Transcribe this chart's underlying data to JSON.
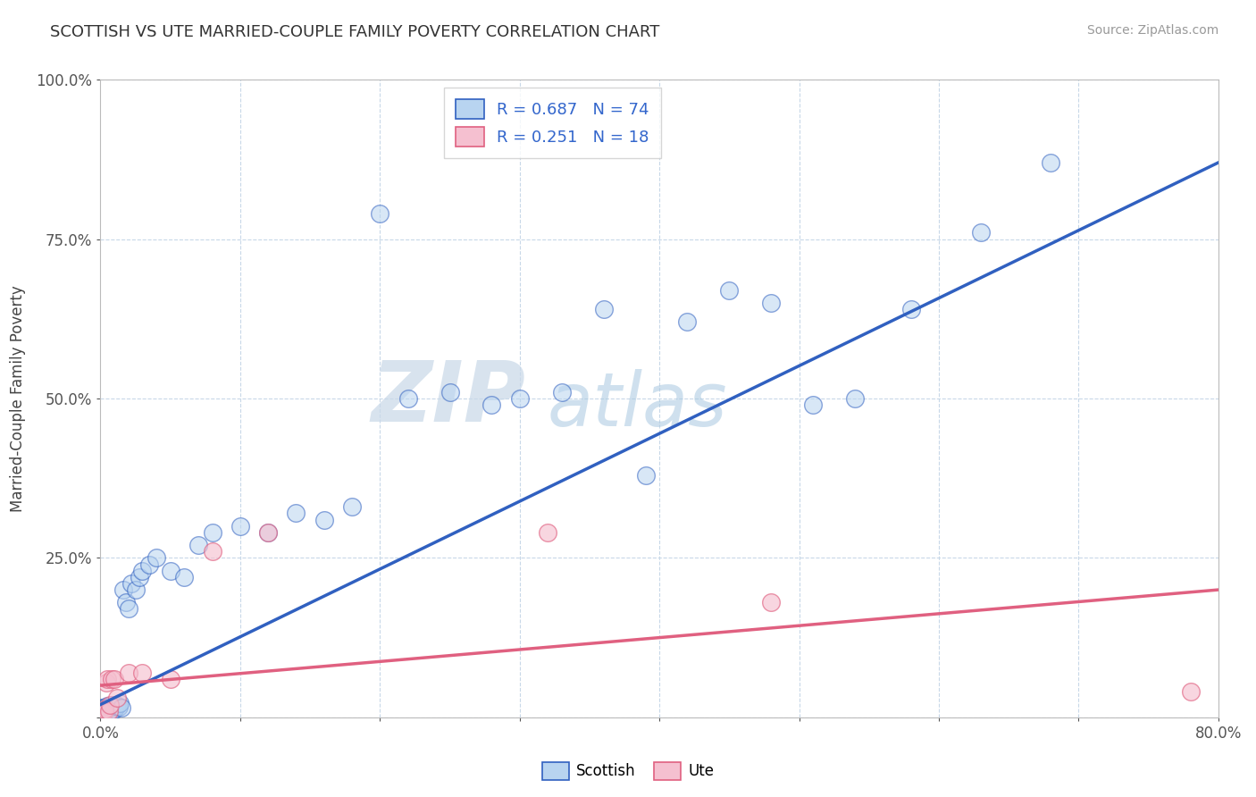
{
  "title": "SCOTTISH VS UTE MARRIED-COUPLE FAMILY POVERTY CORRELATION CHART",
  "source_text": "Source: ZipAtlas.com",
  "ylabel": "Married-Couple Family Poverty",
  "xlim": [
    0.0,
    0.8
  ],
  "ylim": [
    0.0,
    1.0
  ],
  "xticks": [
    0.0,
    0.1,
    0.2,
    0.3,
    0.4,
    0.5,
    0.6,
    0.7,
    0.8
  ],
  "xticklabels": [
    "0.0%",
    "",
    "",
    "",
    "",
    "",
    "",
    "",
    "80.0%"
  ],
  "yticks": [
    0.0,
    0.25,
    0.5,
    0.75,
    1.0
  ],
  "yticklabels": [
    "",
    "25.0%",
    "50.0%",
    "75.0%",
    "100.0%"
  ],
  "scottish_color": "#b8d4f0",
  "ute_color": "#f5c0d0",
  "scottish_line_color": "#3060c0",
  "ute_line_color": "#e06080",
  "scottish_R": 0.687,
  "scottish_N": 74,
  "ute_R": 0.251,
  "ute_N": 18,
  "watermark_zip": "ZIP",
  "watermark_atlas": "atlas",
  "background_color": "#ffffff",
  "grid_color": "#c8d8e8",
  "scottish_x": [
    0.001,
    0.001,
    0.001,
    0.001,
    0.001,
    0.002,
    0.002,
    0.002,
    0.002,
    0.002,
    0.003,
    0.003,
    0.003,
    0.003,
    0.004,
    0.004,
    0.004,
    0.004,
    0.005,
    0.005,
    0.005,
    0.005,
    0.006,
    0.006,
    0.006,
    0.007,
    0.007,
    0.007,
    0.008,
    0.008,
    0.008,
    0.009,
    0.009,
    0.01,
    0.01,
    0.011,
    0.012,
    0.013,
    0.014,
    0.015,
    0.016,
    0.018,
    0.02,
    0.022,
    0.025,
    0.028,
    0.03,
    0.035,
    0.04,
    0.05,
    0.06,
    0.07,
    0.08,
    0.1,
    0.12,
    0.14,
    0.16,
    0.18,
    0.2,
    0.22,
    0.25,
    0.28,
    0.3,
    0.33,
    0.36,
    0.39,
    0.42,
    0.45,
    0.48,
    0.51,
    0.54,
    0.58,
    0.63,
    0.68
  ],
  "scottish_y": [
    0.005,
    0.008,
    0.01,
    0.012,
    0.015,
    0.005,
    0.008,
    0.01,
    0.013,
    0.015,
    0.006,
    0.009,
    0.011,
    0.014,
    0.007,
    0.01,
    0.013,
    0.016,
    0.008,
    0.011,
    0.014,
    0.018,
    0.009,
    0.012,
    0.016,
    0.01,
    0.013,
    0.017,
    0.011,
    0.015,
    0.019,
    0.012,
    0.016,
    0.013,
    0.018,
    0.02,
    0.018,
    0.016,
    0.022,
    0.015,
    0.2,
    0.18,
    0.17,
    0.21,
    0.2,
    0.22,
    0.23,
    0.24,
    0.25,
    0.23,
    0.22,
    0.27,
    0.29,
    0.3,
    0.29,
    0.32,
    0.31,
    0.33,
    0.79,
    0.5,
    0.51,
    0.49,
    0.5,
    0.51,
    0.64,
    0.38,
    0.62,
    0.67,
    0.65,
    0.49,
    0.5,
    0.64,
    0.76,
    0.87
  ],
  "ute_x": [
    0.001,
    0.002,
    0.003,
    0.004,
    0.005,
    0.006,
    0.007,
    0.008,
    0.01,
    0.012,
    0.02,
    0.03,
    0.05,
    0.08,
    0.12,
    0.32,
    0.48,
    0.78
  ],
  "ute_y": [
    0.01,
    0.008,
    0.012,
    0.055,
    0.06,
    0.01,
    0.02,
    0.06,
    0.06,
    0.03,
    0.07,
    0.07,
    0.06,
    0.26,
    0.29,
    0.29,
    0.18,
    0.04
  ]
}
